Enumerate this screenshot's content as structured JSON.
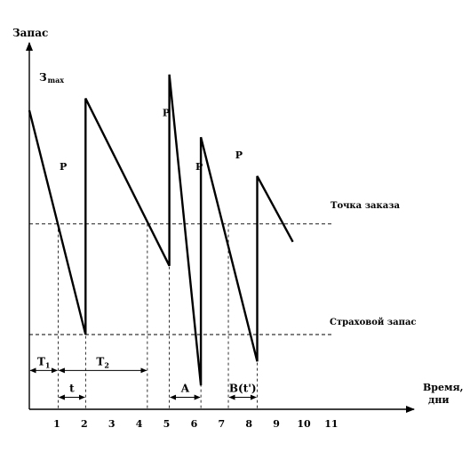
{
  "chart_data": {
    "type": "line",
    "ylabel": "Запас",
    "xlabel": "Время, дни",
    "zmax_label_main": "З",
    "zmax_label_sub": "max",
    "x_ticks": [
      "1",
      "2",
      "3",
      "4",
      "5",
      "6",
      "7",
      "8",
      "9",
      "10",
      "11"
    ],
    "x_tick_values": [
      1,
      2,
      3,
      4,
      5,
      6,
      7,
      8,
      9,
      10,
      11
    ],
    "xlim": [
      0,
      11.8
    ],
    "ylim": [
      0,
      100
    ],
    "levels": {
      "reorder_point": {
        "label": "Точка заказа",
        "value": 62
      },
      "safety_stock": {
        "label": "Страховой запас",
        "value": 25
      }
    },
    "inventory_series": [
      {
        "x": 0.0,
        "y": 100
      },
      {
        "x": 2.05,
        "y": 25
      },
      {
        "x": 2.05,
        "y": 104
      },
      {
        "x": 5.1,
        "y": 48
      },
      {
        "x": 5.1,
        "y": 112
      },
      {
        "x": 6.25,
        "y": 8
      },
      {
        "x": 6.25,
        "y": 91
      },
      {
        "x": 8.3,
        "y": 16
      },
      {
        "x": 8.3,
        "y": 78
      },
      {
        "x": 9.6,
        "y": 56
      }
    ],
    "order_lines_x": [
      1.05,
      2.05,
      4.3,
      5.1,
      6.25,
      7.25,
      8.3
    ],
    "annotations": [
      {
        "text": "P",
        "x": 1.1,
        "y": 80
      },
      {
        "text": "P",
        "x": 4.85,
        "y": 98
      },
      {
        "text": "P",
        "x": 6.05,
        "y": 80
      },
      {
        "text": "P",
        "x": 7.5,
        "y": 84
      }
    ],
    "intervals": [
      {
        "main": "T",
        "sub": "1",
        "from": 0.0,
        "to": 1.05,
        "y": 13
      },
      {
        "main": "T",
        "sub": "2",
        "from": 1.05,
        "to": 4.3,
        "y": 13
      },
      {
        "main": "t",
        "sub": "",
        "from": 1.05,
        "to": 2.05,
        "y": 4
      },
      {
        "main": "A",
        "sub": "",
        "from": 5.1,
        "to": 6.25,
        "y": 4
      },
      {
        "main": "B(t')",
        "sub": "",
        "from": 7.25,
        "to": 8.3,
        "y": 4
      }
    ]
  }
}
